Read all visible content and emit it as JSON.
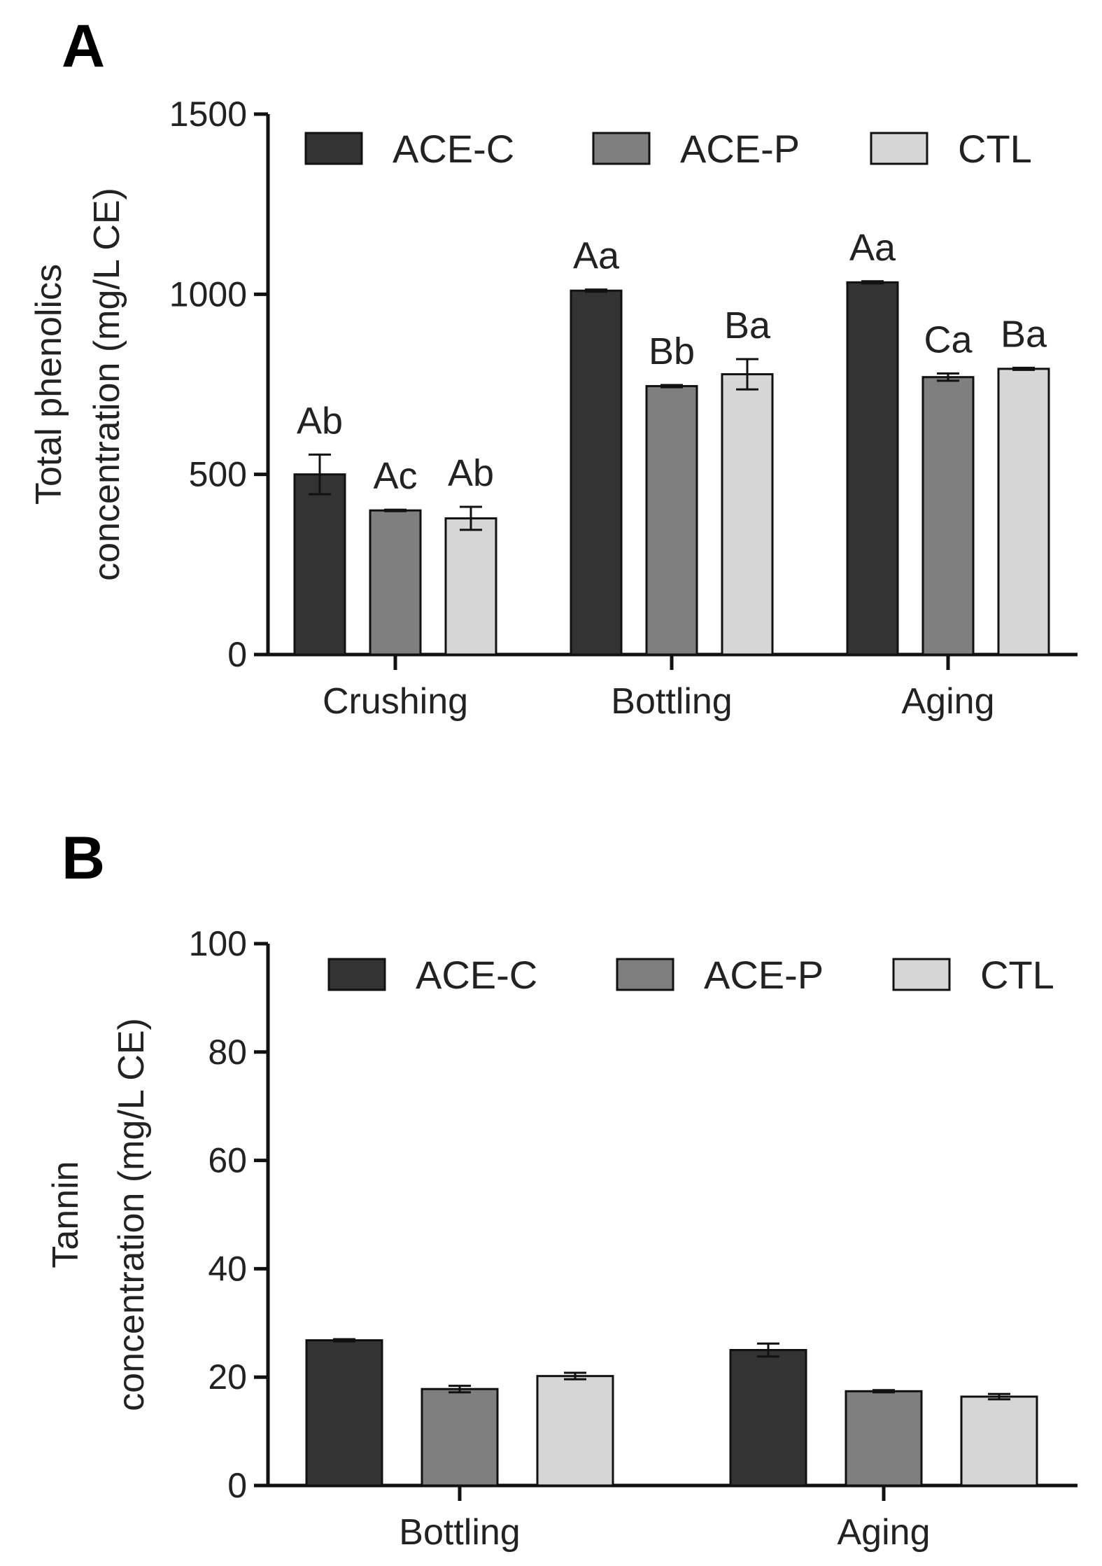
{
  "chart_data": [
    {
      "panel": "A",
      "type": "bar",
      "ylabel_lines": [
        "Total phenolics",
        "concentration (mg/L CE)"
      ],
      "ylim": [
        0,
        1500
      ],
      "yticks": [
        0,
        500,
        1000,
        1500
      ],
      "categories": [
        "Crushing",
        "Bottling",
        "Aging"
      ],
      "legend": "top",
      "series": [
        {
          "name": "ACE-C",
          "color": "#333333",
          "values": [
            500,
            1010,
            1033
          ],
          "errors": [
            55,
            3,
            3
          ],
          "labels": [
            "Ab",
            "Aa",
            "Aa"
          ]
        },
        {
          "name": "ACE-P",
          "color": "#7f7f7f",
          "values": [
            400,
            745,
            770
          ],
          "errors": [
            2,
            3,
            10
          ],
          "labels": [
            "Ac",
            "Bb",
            "Ca"
          ]
        },
        {
          "name": "CTL",
          "color": "#d6d6d6",
          "values": [
            378,
            778,
            793
          ],
          "errors": [
            32,
            42,
            3
          ],
          "labels": [
            "Ab",
            "Ba",
            "Ba"
          ]
        }
      ]
    },
    {
      "panel": "B",
      "type": "bar",
      "ylabel_lines": [
        "Tannin",
        "concentration (mg/L CE)"
      ],
      "ylim": [
        0,
        100
      ],
      "yticks": [
        0,
        20,
        40,
        60,
        80,
        100
      ],
      "categories": [
        "Bottling",
        "Aging"
      ],
      "legend": "top",
      "series": [
        {
          "name": "ACE-C",
          "color": "#333333",
          "values": [
            26.8,
            25.0
          ],
          "errors": [
            0.2,
            1.2
          ]
        },
        {
          "name": "ACE-P",
          "color": "#7f7f7f",
          "values": [
            17.8,
            17.4
          ],
          "errors": [
            0.6,
            0.2
          ]
        },
        {
          "name": "CTL",
          "color": "#d6d6d6",
          "values": [
            20.2,
            16.4
          ],
          "errors": [
            0.6,
            0.5
          ]
        }
      ]
    }
  ]
}
